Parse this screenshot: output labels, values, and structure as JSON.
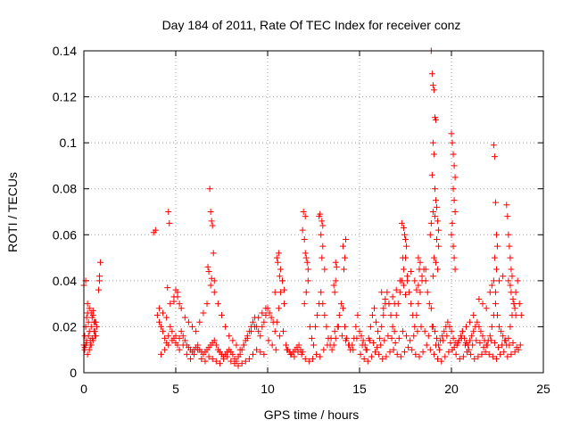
{
  "chart_data": {
    "type": "scatter",
    "title": "Day 184 of 2011, Rate Of TEC Index for receiver conz",
    "xlabel": "GPS time / hours",
    "ylabel": "ROTI / TECUs",
    "xlim": [
      0,
      25
    ],
    "ylim": [
      0,
      0.14
    ],
    "xticks": [
      0,
      5,
      10,
      15,
      20,
      25
    ],
    "yticks": [
      0,
      0.02,
      0.04,
      0.06,
      0.08,
      0.1,
      0.12,
      0.14
    ],
    "xtick_labels": [
      "0",
      "5",
      "10",
      "15",
      "20",
      "25"
    ],
    "ytick_labels": [
      "0",
      "0.02",
      "0.04",
      "0.06",
      "0.08",
      "0.1",
      "0.12",
      "0.14"
    ],
    "grid": true,
    "marker": "+",
    "color": "#ff0000",
    "series": [
      {
        "name": "ROTI",
        "x": [
          0.0,
          0.05,
          0.1,
          0.15,
          0.2,
          0.25,
          0.3,
          0.35,
          0.4,
          0.45,
          0.5,
          0.55,
          0.6,
          0.65,
          0.7,
          0.0,
          0.1,
          0.2,
          0.3,
          0.4,
          0.5,
          0.6,
          0.05,
          0.1,
          0.15,
          0.25,
          0.35,
          0.45,
          0.55,
          0.65,
          0.2,
          0.3,
          0.4,
          0.5,
          0.6,
          0.05,
          0.15,
          0.8,
          0.85,
          0.9,
          0.85,
          3.8,
          3.9,
          4.0,
          4.1,
          4.2,
          4.3,
          4.4,
          4.5,
          4.6,
          4.7,
          4.8,
          4.9,
          5.0,
          5.1,
          5.2,
          5.3,
          5.4,
          5.5,
          5.6,
          5.7,
          5.8,
          5.9,
          6.0,
          6.1,
          6.2,
          6.3,
          6.4,
          6.5,
          6.6,
          6.7,
          6.8,
          6.9,
          7.0,
          7.1,
          7.2,
          7.3,
          7.4,
          7.5,
          7.6,
          7.7,
          7.8,
          7.9,
          8.0,
          8.1,
          8.2,
          8.3,
          8.4,
          8.5,
          8.6,
          8.7,
          8.8,
          8.9,
          9.0,
          9.1,
          9.2,
          9.3,
          9.4,
          9.5,
          9.6,
          9.7,
          9.8,
          9.9,
          4.1,
          4.3,
          4.5,
          4.7,
          4.9,
          5.1,
          5.3,
          5.5,
          5.7,
          5.9,
          6.1,
          6.3,
          6.5,
          6.7,
          6.9,
          7.1,
          7.3,
          7.5,
          7.7,
          7.9,
          8.1,
          8.3,
          8.5,
          8.7,
          8.9,
          9.1,
          9.3,
          9.5,
          9.7,
          9.9,
          4.2,
          4.4,
          4.6,
          4.8,
          5.0,
          5.2,
          5.4,
          5.6,
          5.8,
          6.0,
          6.2,
          6.4,
          6.6,
          6.8,
          7.0,
          7.2,
          7.4,
          7.6,
          7.8,
          8.0,
          8.2,
          8.4,
          8.6,
          8.8,
          9.0,
          9.2,
          9.4,
          9.6,
          9.8,
          4.6,
          4.65,
          4.55,
          6.85,
          6.9,
          6.95,
          7.0,
          7.05,
          6.75,
          6.8,
          6.95,
          7.1,
          5.0,
          5.1,
          5.2,
          4.9,
          10.0,
          10.1,
          10.2,
          10.3,
          10.4,
          10.5,
          10.6,
          10.7,
          10.8,
          10.9,
          11.0,
          11.1,
          11.2,
          11.3,
          11.4,
          11.5,
          11.6,
          11.7,
          11.8,
          11.9,
          12.0,
          12.1,
          12.2,
          12.3,
          12.4,
          12.5,
          12.6,
          12.7,
          12.8,
          12.9,
          13.0,
          13.1,
          13.2,
          13.3,
          13.4,
          13.5,
          13.6,
          13.7,
          13.8,
          13.9,
          14.0,
          14.1,
          14.2,
          14.3,
          14.4,
          14.5,
          14.6,
          14.7,
          14.8,
          14.9,
          10.05,
          10.25,
          10.45,
          10.65,
          10.85,
          11.05,
          11.25,
          11.45,
          11.65,
          11.85,
          12.05,
          12.25,
          12.45,
          12.65,
          12.85,
          13.05,
          13.25,
          13.45,
          13.65,
          13.85,
          14.05,
          14.25,
          14.45,
          14.65,
          14.85,
          10.4,
          10.5,
          10.6,
          10.7,
          10.8,
          10.9,
          10.55,
          10.65,
          11.9,
          12.0,
          12.1,
          12.2,
          12.15,
          12.05,
          12.8,
          12.9,
          13.0,
          12.95,
          13.1,
          13.6,
          13.7,
          13.65,
          14.1,
          14.2,
          14.25,
          14.15,
          11.95,
          12.05,
          12.85,
          12.95,
          13.0,
          13.7,
          13.75,
          15.0,
          15.1,
          15.2,
          15.3,
          15.4,
          15.5,
          15.6,
          15.7,
          15.8,
          15.9,
          16.0,
          16.1,
          16.2,
          16.3,
          16.4,
          16.5,
          16.6,
          16.7,
          16.8,
          16.9,
          17.0,
          17.1,
          17.2,
          17.3,
          17.4,
          17.5,
          17.6,
          17.7,
          17.8,
          17.9,
          18.0,
          18.1,
          18.2,
          18.3,
          18.4,
          18.5,
          18.6,
          18.7,
          18.8,
          18.9,
          15.05,
          15.25,
          15.45,
          15.65,
          15.85,
          16.05,
          16.25,
          16.45,
          16.65,
          16.85,
          17.05,
          17.25,
          17.45,
          17.65,
          17.85,
          18.05,
          18.25,
          18.45,
          18.65,
          18.85,
          15.15,
          15.35,
          15.55,
          15.75,
          15.95,
          16.15,
          16.35,
          16.55,
          16.75,
          16.95,
          17.15,
          17.35,
          17.55,
          17.75,
          17.95,
          18.15,
          18.35,
          18.55,
          18.75,
          18.95,
          16.2,
          16.4,
          16.6,
          16.8,
          17.0,
          17.2,
          17.4,
          17.6,
          17.8,
          18.0,
          18.2,
          18.4,
          18.6,
          16.3,
          16.9,
          17.5,
          18.1,
          17.3,
          17.4,
          17.5,
          17.45,
          17.55,
          17.35,
          18.2,
          18.3,
          18.25,
          18.9,
          18.95,
          19.0,
          19.05,
          19.1,
          19.15,
          19.0,
          19.05,
          18.95,
          19.1,
          19.15,
          19.2,
          19.25,
          19.3,
          19.0,
          19.1,
          18.9,
          18.85,
          19.2,
          19.3,
          19.05,
          19.15,
          19.25,
          19.0,
          19.0,
          19.1,
          19.2,
          19.3,
          19.4,
          19.5,
          19.6,
          19.7,
          19.8,
          19.9,
          20.0,
          20.1,
          20.2,
          20.3,
          20.4,
          20.5,
          20.6,
          20.7,
          20.8,
          20.9,
          21.0,
          21.1,
          21.2,
          21.3,
          21.4,
          21.5,
          21.6,
          21.7,
          21.8,
          21.9,
          22.0,
          22.1,
          22.2,
          22.3,
          22.4,
          22.5,
          22.6,
          22.7,
          22.8,
          22.9,
          23.0,
          23.1,
          23.2,
          23.3,
          23.4,
          23.5,
          23.6,
          23.7,
          23.8,
          19.05,
          19.25,
          19.45,
          19.65,
          19.85,
          20.05,
          20.25,
          20.45,
          20.65,
          20.85,
          21.05,
          21.25,
          21.45,
          21.65,
          21.85,
          22.05,
          22.25,
          22.45,
          22.65,
          22.85,
          23.05,
          23.25,
          23.45,
          23.65,
          19.15,
          19.35,
          19.55,
          19.75,
          19.95,
          20.15,
          20.35,
          20.55,
          20.75,
          20.95,
          21.15,
          21.35,
          21.55,
          21.75,
          21.95,
          22.15,
          22.35,
          22.55,
          22.75,
          22.95,
          23.15,
          23.35,
          23.55,
          23.75,
          20.0,
          20.05,
          20.1,
          20.15,
          20.2,
          20.1,
          20.15,
          20.2,
          20.05,
          20.0,
          20.1,
          20.15,
          20.2,
          22.3,
          22.35,
          22.4,
          22.45,
          22.5,
          22.35,
          22.45,
          22.3,
          22.4,
          23.0,
          23.05,
          23.1,
          23.15,
          23.2,
          23.25,
          23.3,
          23.1,
          23.2,
          23.25,
          23.35,
          23.4,
          23.45,
          23.5,
          21.5,
          21.7,
          21.9,
          22.1,
          22.2,
          22.6,
          22.8,
          21.2,
          21.0,
          20.8,
          20.6
        ],
        "y": [
          0.012,
          0.016,
          0.02,
          0.024,
          0.026,
          0.022,
          0.018,
          0.014,
          0.02,
          0.024,
          0.027,
          0.022,
          0.018,
          0.016,
          0.02,
          0.038,
          0.04,
          0.03,
          0.028,
          0.026,
          0.025,
          0.022,
          0.01,
          0.012,
          0.014,
          0.016,
          0.012,
          0.015,
          0.018,
          0.022,
          0.008,
          0.01,
          0.012,
          0.014,
          0.016,
          0.011,
          0.013,
          0.036,
          0.042,
          0.048,
          0.04,
          0.061,
          0.062,
          0.025,
          0.022,
          0.02,
          0.018,
          0.015,
          0.013,
          0.016,
          0.02,
          0.018,
          0.015,
          0.013,
          0.012,
          0.015,
          0.018,
          0.016,
          0.014,
          0.012,
          0.011,
          0.01,
          0.009,
          0.01,
          0.011,
          0.012,
          0.01,
          0.009,
          0.008,
          0.009,
          0.01,
          0.011,
          0.012,
          0.013,
          0.014,
          0.012,
          0.01,
          0.009,
          0.008,
          0.007,
          0.008,
          0.009,
          0.01,
          0.009,
          0.008,
          0.006,
          0.005,
          0.007,
          0.008,
          0.01,
          0.012,
          0.014,
          0.016,
          0.018,
          0.02,
          0.022,
          0.024,
          0.02,
          0.018,
          0.016,
          0.02,
          0.022,
          0.025,
          0.028,
          0.026,
          0.024,
          0.03,
          0.033,
          0.035,
          0.028,
          0.024,
          0.022,
          0.02,
          0.018,
          0.022,
          0.026,
          0.03,
          0.038,
          0.035,
          0.03,
          0.025,
          0.02,
          0.016,
          0.014,
          0.012,
          0.01,
          0.012,
          0.015,
          0.018,
          0.02,
          0.024,
          0.026,
          0.028,
          0.008,
          0.01,
          0.012,
          0.014,
          0.016,
          0.01,
          0.012,
          0.008,
          0.006,
          0.008,
          0.01,
          0.006,
          0.005,
          0.007,
          0.006,
          0.005,
          0.004,
          0.006,
          0.007,
          0.005,
          0.004,
          0.003,
          0.004,
          0.005,
          0.006,
          0.008,
          0.01,
          0.009,
          0.008,
          0.07,
          0.065,
          0.037,
          0.08,
          0.07,
          0.066,
          0.064,
          0.052,
          0.046,
          0.044,
          0.041,
          0.04,
          0.036,
          0.033,
          0.03,
          0.031,
          0.028,
          0.026,
          0.024,
          0.022,
          0.018,
          0.022,
          0.028,
          0.035,
          0.04,
          0.03,
          0.012,
          0.01,
          0.009,
          0.008,
          0.009,
          0.01,
          0.011,
          0.012,
          0.01,
          0.009,
          0.03,
          0.035,
          0.04,
          0.02,
          0.015,
          0.012,
          0.02,
          0.025,
          0.03,
          0.035,
          0.03,
          0.025,
          0.02,
          0.015,
          0.012,
          0.01,
          0.012,
          0.015,
          0.02,
          0.025,
          0.03,
          0.028,
          0.02,
          0.015,
          0.012,
          0.01,
          0.012,
          0.015,
          0.02,
          0.025,
          0.014,
          0.012,
          0.01,
          0.016,
          0.018,
          0.01,
          0.008,
          0.007,
          0.009,
          0.008,
          0.006,
          0.005,
          0.006,
          0.008,
          0.007,
          0.01,
          0.012,
          0.015,
          0.018,
          0.02,
          0.016,
          0.014,
          0.012,
          0.01,
          0.015,
          0.035,
          0.05,
          0.052,
          0.045,
          0.04,
          0.036,
          0.048,
          0.042,
          0.062,
          0.058,
          0.05,
          0.045,
          0.048,
          0.052,
          0.068,
          0.06,
          0.055,
          0.05,
          0.045,
          0.038,
          0.04,
          0.035,
          0.055,
          0.05,
          0.058,
          0.045,
          0.07,
          0.068,
          0.069,
          0.066,
          0.064,
          0.048,
          0.046,
          0.018,
          0.016,
          0.014,
          0.012,
          0.01,
          0.015,
          0.02,
          0.025,
          0.028,
          0.022,
          0.018,
          0.015,
          0.02,
          0.025,
          0.03,
          0.035,
          0.03,
          0.025,
          0.02,
          0.018,
          0.025,
          0.03,
          0.035,
          0.04,
          0.045,
          0.05,
          0.04,
          0.035,
          0.03,
          0.025,
          0.02,
          0.025,
          0.03,
          0.035,
          0.04,
          0.045,
          0.04,
          0.035,
          0.03,
          0.028,
          0.008,
          0.006,
          0.005,
          0.007,
          0.009,
          0.008,
          0.006,
          0.007,
          0.009,
          0.01,
          0.008,
          0.007,
          0.009,
          0.011,
          0.01,
          0.008,
          0.007,
          0.009,
          0.012,
          0.01,
          0.012,
          0.01,
          0.014,
          0.013,
          0.011,
          0.012,
          0.014,
          0.016,
          0.015,
          0.013,
          0.015,
          0.018,
          0.016,
          0.014,
          0.016,
          0.018,
          0.02,
          0.018,
          0.016,
          0.02,
          0.035,
          0.032,
          0.03,
          0.033,
          0.036,
          0.04,
          0.038,
          0.042,
          0.044,
          0.04,
          0.038,
          0.042,
          0.045,
          0.028,
          0.03,
          0.034,
          0.036,
          0.065,
          0.063,
          0.058,
          0.06,
          0.055,
          0.05,
          0.05,
          0.048,
          0.045,
          0.14,
          0.13,
          0.125,
          0.123,
          0.111,
          0.11,
          0.1,
          0.095,
          0.086,
          0.08,
          0.075,
          0.072,
          0.066,
          0.062,
          0.07,
          0.068,
          0.065,
          0.06,
          0.058,
          0.055,
          0.05,
          0.048,
          0.045,
          0.042,
          0.02,
          0.018,
          0.015,
          0.012,
          0.014,
          0.016,
          0.018,
          0.02,
          0.022,
          0.02,
          0.018,
          0.015,
          0.013,
          0.012,
          0.014,
          0.016,
          0.018,
          0.015,
          0.013,
          0.012,
          0.014,
          0.016,
          0.018,
          0.02,
          0.022,
          0.02,
          0.018,
          0.016,
          0.014,
          0.012,
          0.014,
          0.016,
          0.02,
          0.025,
          0.03,
          0.025,
          0.02,
          0.018,
          0.016,
          0.014,
          0.012,
          0.015,
          0.02,
          0.025,
          0.03,
          0.035,
          0.04,
          0.03,
          0.025,
          0.008,
          0.006,
          0.005,
          0.007,
          0.009,
          0.01,
          0.008,
          0.006,
          0.007,
          0.009,
          0.008,
          0.006,
          0.007,
          0.008,
          0.009,
          0.008,
          0.007,
          0.006,
          0.008,
          0.009,
          0.007,
          0.008,
          0.009,
          0.01,
          0.012,
          0.01,
          0.014,
          0.016,
          0.013,
          0.011,
          0.013,
          0.015,
          0.012,
          0.01,
          0.012,
          0.014,
          0.013,
          0.011,
          0.012,
          0.014,
          0.013,
          0.011,
          0.012,
          0.014,
          0.012,
          0.013,
          0.011,
          0.012,
          0.104,
          0.1,
          0.095,
          0.09,
          0.085,
          0.08,
          0.075,
          0.07,
          0.065,
          0.06,
          0.055,
          0.05,
          0.045,
          0.099,
          0.094,
          0.074,
          0.06,
          0.055,
          0.05,
          0.045,
          0.04,
          0.035,
          0.073,
          0.068,
          0.06,
          0.055,
          0.05,
          0.045,
          0.042,
          0.04,
          0.038,
          0.035,
          0.032,
          0.03,
          0.028,
          0.025,
          0.032,
          0.03,
          0.028,
          0.035,
          0.038,
          0.04,
          0.042,
          0.025,
          0.022,
          0.02,
          0.018
        ]
      }
    ]
  }
}
